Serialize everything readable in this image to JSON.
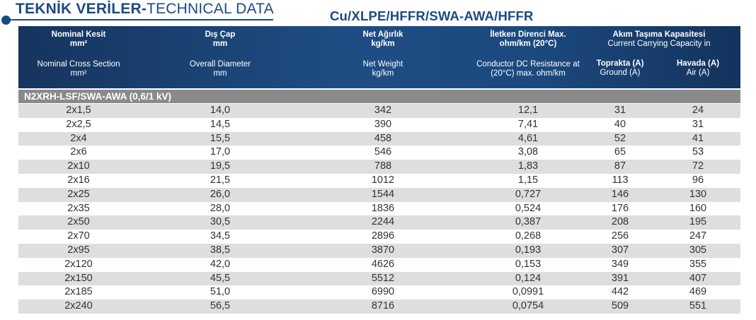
{
  "title": {
    "main_bold": "TEKNİK VERİLER-",
    "main_light": "TECHNICAL DATA",
    "cable_code": "Cu/XLPE/HFFR/SWA-AWA/HFFR"
  },
  "header": {
    "columns": [
      {
        "tr": "Nominal Kesit",
        "tr_unit": "mm²",
        "en": "Nominal Cross Section",
        "en_unit": "mm²"
      },
      {
        "tr": "Dış Çap",
        "tr_unit": "mm",
        "en": "Overall Diameter",
        "en_unit": "mm"
      },
      {
        "tr": "Net Ağırlık",
        "tr_unit": "kg/km",
        "en": "Net Weight",
        "en_unit": "kg/km"
      },
      {
        "tr": "İletken Direnci Max.",
        "tr_unit": "ohm/km (20°C)",
        "en": "Conductor DC Resistance at",
        "en_unit": "(20°C) max. ohm/km"
      }
    ],
    "capacity": {
      "tr": "Akım Taşıma Kapasitesi",
      "en": "Current Carrying Capacity in",
      "ground_tr": "Toprakta (A)",
      "ground_en": "Ground (A)",
      "air_tr": "Havada (A)",
      "air_en": "Air (A)"
    }
  },
  "section_label": "N2XRH-LSF/SWA-AWA (0,6/1 kV)",
  "rows": [
    [
      "2x1,5",
      "14,0",
      "342",
      "12,1",
      "31",
      "24"
    ],
    [
      "2x2,5",
      "14,5",
      "390",
      "7,41",
      "40",
      "31"
    ],
    [
      "2x4",
      "15,5",
      "458",
      "4,61",
      "52",
      "41"
    ],
    [
      "2x6",
      "17,0",
      "546",
      "3,08",
      "65",
      "53"
    ],
    [
      "2x10",
      "19,5",
      "788",
      "1,83",
      "87",
      "72"
    ],
    [
      "2x16",
      "21,5",
      "1012",
      "1,15",
      "113",
      "96"
    ],
    [
      "2x25",
      "26,0",
      "1544",
      "0,727",
      "146",
      "130"
    ],
    [
      "2x35",
      "28,0",
      "1836",
      "0,524",
      "176",
      "160"
    ],
    [
      "2x50",
      "30,5",
      "2244",
      "0,387",
      "208",
      "195"
    ],
    [
      "2x70",
      "34,5",
      "2896",
      "0,268",
      "256",
      "247"
    ],
    [
      "2x95",
      "38,5",
      "3870",
      "0,193",
      "307",
      "305"
    ],
    [
      "2x120",
      "42,0",
      "4626",
      "0,153",
      "349",
      "355"
    ],
    [
      "2x150",
      "45,5",
      "5512",
      "0,124",
      "391",
      "407"
    ],
    [
      "2x185",
      "51,0",
      "6990",
      "0,0991",
      "442",
      "469"
    ],
    [
      "2x240",
      "56,5",
      "8716",
      "0,0754",
      "509",
      "551"
    ]
  ],
  "colors": {
    "brand_blue": "#1a4a86",
    "header_bg": "#1e4d84",
    "section_bg": "#8a8a8a",
    "row_shade": "#dedede"
  }
}
